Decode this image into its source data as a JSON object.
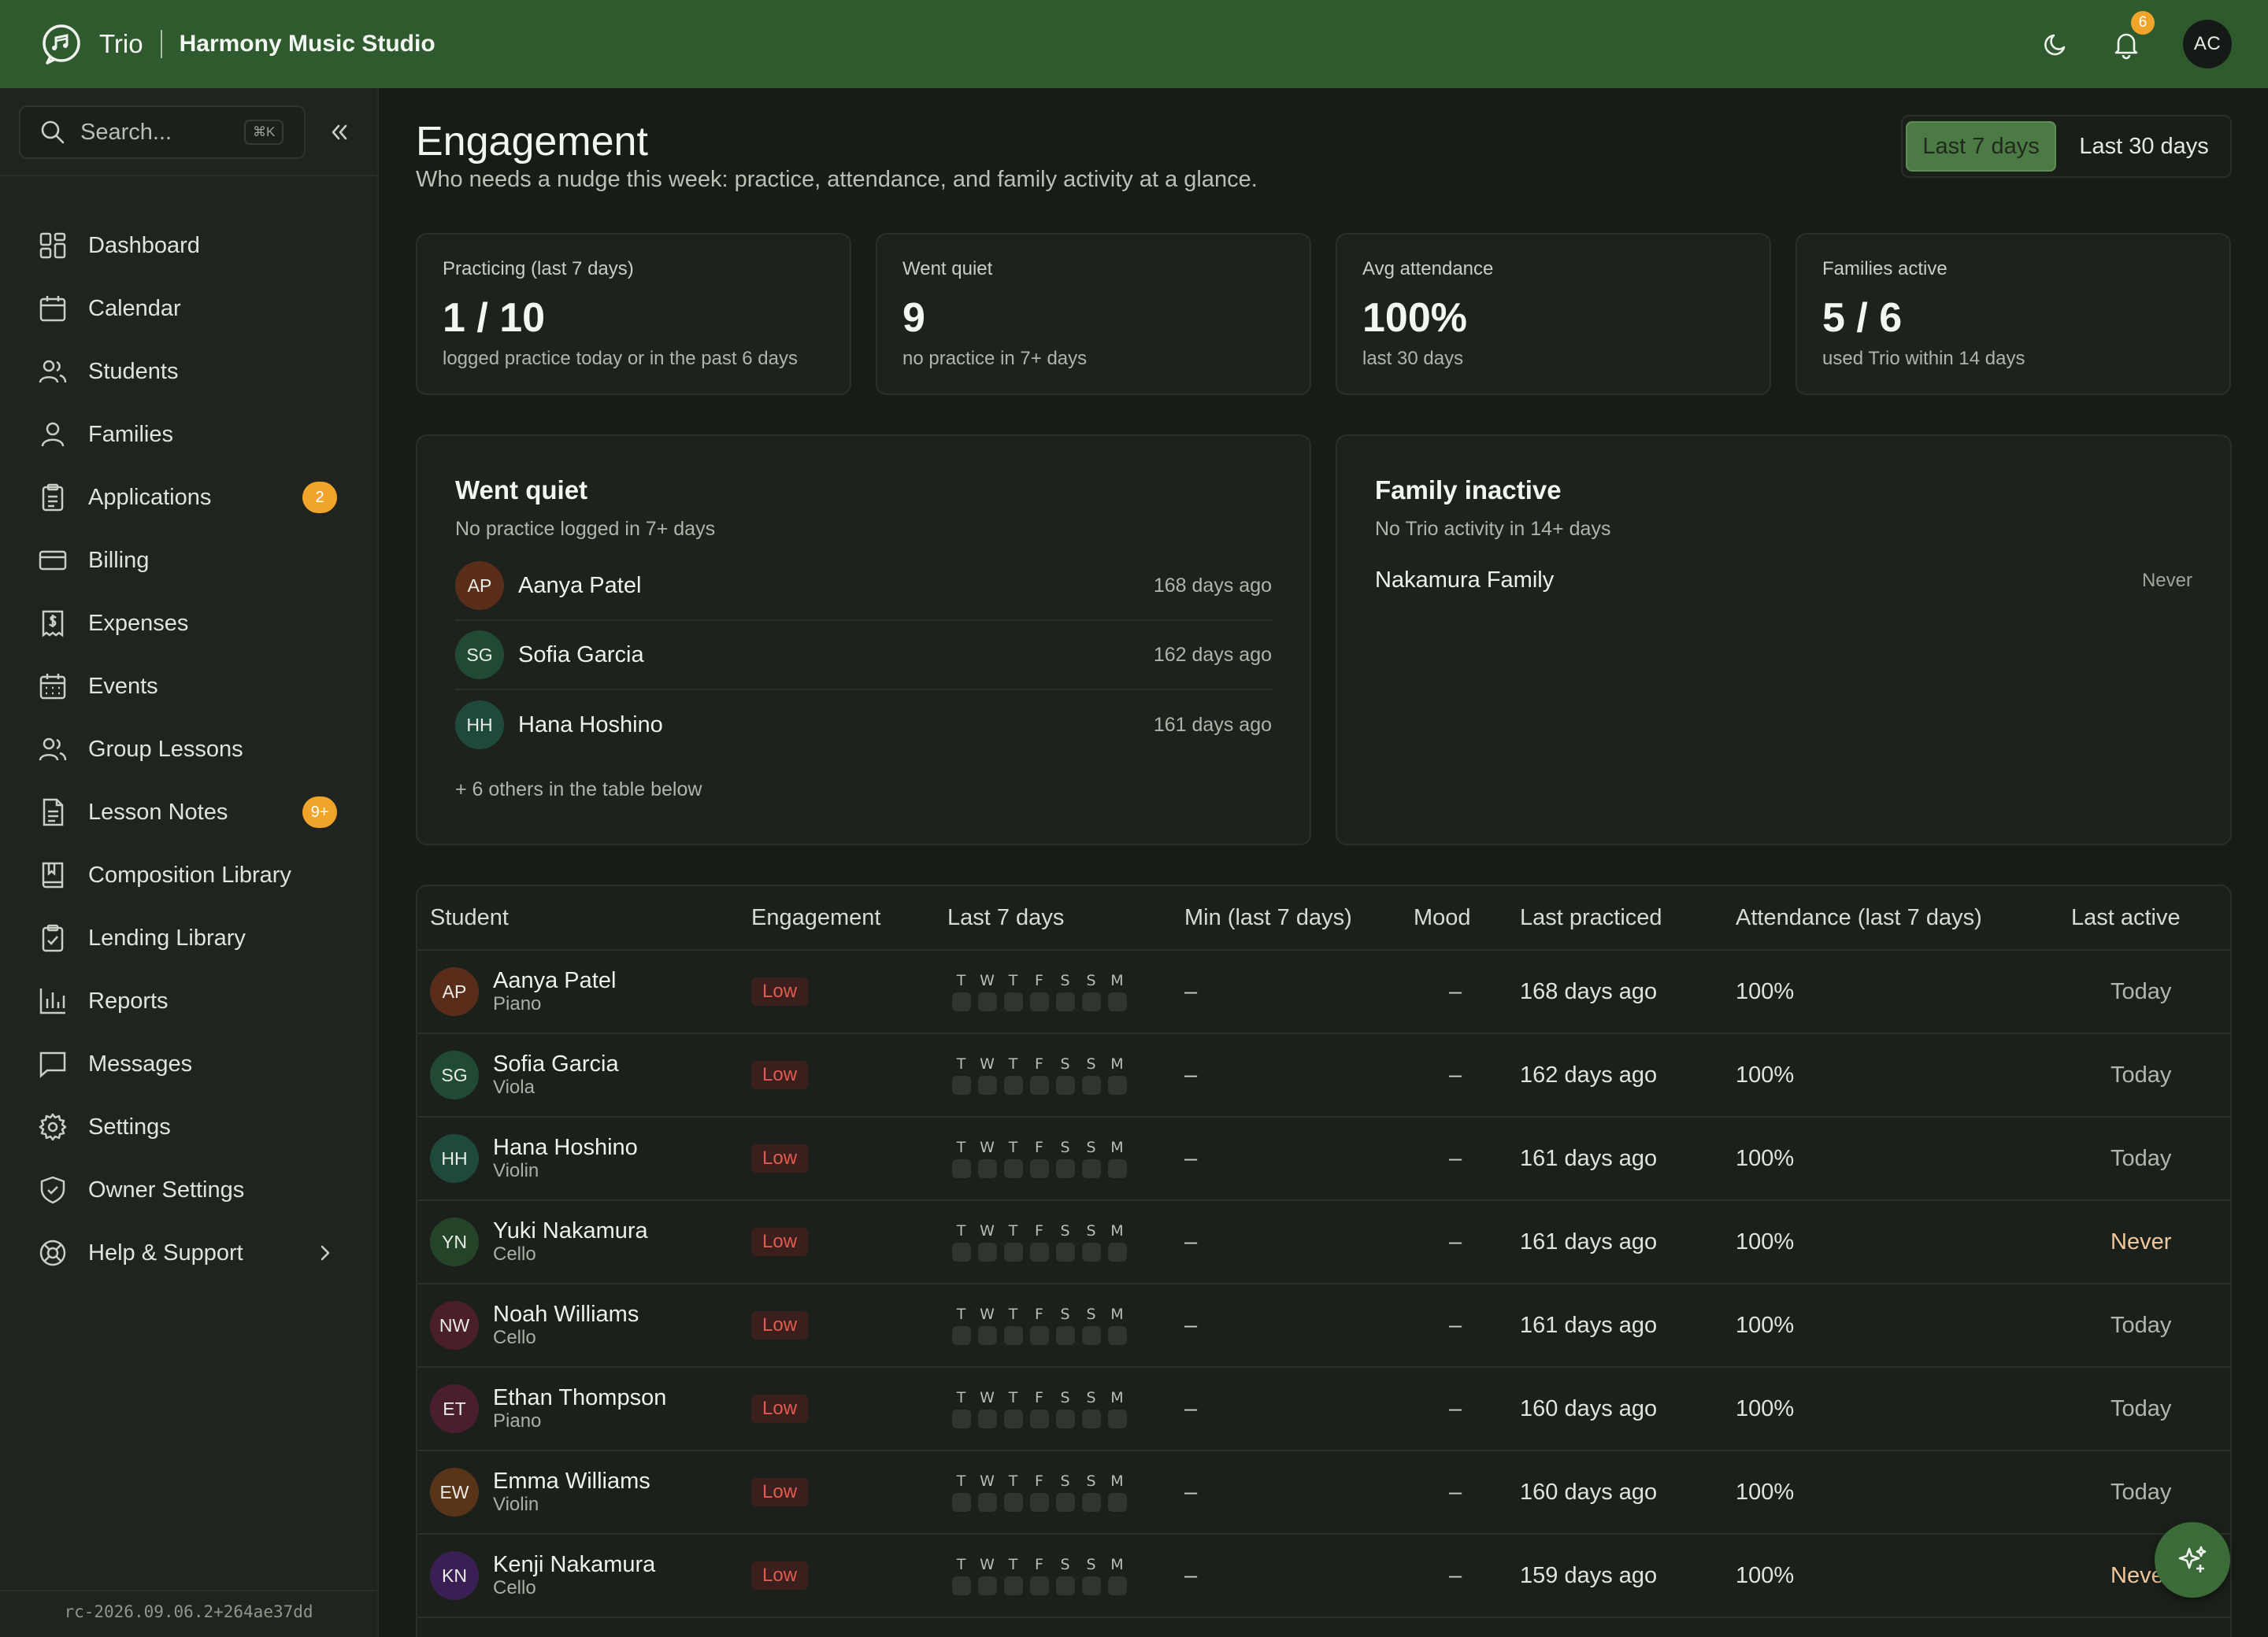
{
  "header": {
    "app_name": "Trio",
    "studio_name": "Harmony Music Studio",
    "notifications_count": "6",
    "user_initials": "AC"
  },
  "sidebar": {
    "search_placeholder": "Search...",
    "search_shortcut": "⌘K",
    "items": [
      {
        "label": "Dashboard",
        "icon": "dashboard-icon"
      },
      {
        "label": "Calendar",
        "icon": "calendar-icon"
      },
      {
        "label": "Students",
        "icon": "students-icon"
      },
      {
        "label": "Families",
        "icon": "families-icon"
      },
      {
        "label": "Applications",
        "icon": "clipboard-icon",
        "badge": "2"
      },
      {
        "label": "Billing",
        "icon": "credit-card-icon"
      },
      {
        "label": "Expenses",
        "icon": "receipt-icon"
      },
      {
        "label": "Events",
        "icon": "events-calendar-icon"
      },
      {
        "label": "Group Lessons",
        "icon": "group-icon"
      },
      {
        "label": "Lesson Notes",
        "icon": "notes-icon",
        "badge": "9+"
      },
      {
        "label": "Composition Library",
        "icon": "book-icon"
      },
      {
        "label": "Lending Library",
        "icon": "lending-icon"
      },
      {
        "label": "Reports",
        "icon": "bar-chart-icon"
      },
      {
        "label": "Messages",
        "icon": "message-icon"
      },
      {
        "label": "Settings",
        "icon": "gear-icon"
      },
      {
        "label": "Owner Settings",
        "icon": "shield-icon"
      },
      {
        "label": "Help & Support",
        "icon": "lifebuoy-icon"
      }
    ],
    "version": "rc-2026.09.06.2+264ae37dd"
  },
  "page": {
    "title": "Engagement",
    "subtitle": "Who needs a nudge this week: practice, attendance, and family activity at a glance.",
    "range_options": [
      "Last 7 days",
      "Last 30 days"
    ],
    "range_selected": "Last 7 days"
  },
  "stats": [
    {
      "label": "Practicing (last 7 days)",
      "value": "1 / 10",
      "foot": "logged practice today or in the past 6 days"
    },
    {
      "label": "Went quiet",
      "value": "9",
      "foot": "no practice in 7+ days"
    },
    {
      "label": "Avg attendance",
      "value": "100%",
      "foot": "last 30 days"
    },
    {
      "label": "Families active",
      "value": "5 / 6",
      "foot": "used Trio within 14 days"
    }
  ],
  "went_quiet": {
    "title": "Went quiet",
    "subtitle": "No practice logged in 7+ days",
    "rows": [
      {
        "initials": "AP",
        "name": "Aanya Patel",
        "ago": "168 days ago"
      },
      {
        "initials": "SG",
        "name": "Sofia Garcia",
        "ago": "162 days ago"
      },
      {
        "initials": "HH",
        "name": "Hana Hoshino",
        "ago": "161 days ago"
      }
    ],
    "more": "+ 6 others in the table below"
  },
  "family_inactive": {
    "title": "Family inactive",
    "subtitle": "No Trio activity in 14+ days",
    "rows": [
      {
        "name": "Nakamura Family",
        "value": "Never"
      }
    ]
  },
  "table": {
    "columns": [
      "Student",
      "Engagement",
      "Last 7 days",
      "Min (last 7 days)",
      "Mood",
      "Last practiced",
      "Attendance (last 7 days)",
      "Last active"
    ],
    "week_letters": [
      "T",
      "W",
      "T",
      "F",
      "S",
      "S",
      "M"
    ],
    "rows": [
      {
        "initials": "AP",
        "name": "Aanya Patel",
        "instrument": "Piano",
        "engagement": "Low",
        "minutes": "–",
        "mood": "–",
        "last_practiced": "168 days ago",
        "attendance": "100%",
        "last_active": "Today"
      },
      {
        "initials": "SG",
        "name": "Sofia Garcia",
        "instrument": "Viola",
        "engagement": "Low",
        "minutes": "–",
        "mood": "–",
        "last_practiced": "162 days ago",
        "attendance": "100%",
        "last_active": "Today"
      },
      {
        "initials": "HH",
        "name": "Hana Hoshino",
        "instrument": "Violin",
        "engagement": "Low",
        "minutes": "–",
        "mood": "–",
        "last_practiced": "161 days ago",
        "attendance": "100%",
        "last_active": "Today"
      },
      {
        "initials": "YN",
        "name": "Yuki Nakamura",
        "instrument": "Cello",
        "engagement": "Low",
        "minutes": "–",
        "mood": "–",
        "last_practiced": "161 days ago",
        "attendance": "100%",
        "last_active": "Never"
      },
      {
        "initials": "NW",
        "name": "Noah Williams",
        "instrument": "Cello",
        "engagement": "Low",
        "minutes": "–",
        "mood": "–",
        "last_practiced": "161 days ago",
        "attendance": "100%",
        "last_active": "Today"
      },
      {
        "initials": "ET",
        "name": "Ethan Thompson",
        "instrument": "Piano",
        "engagement": "Low",
        "minutes": "–",
        "mood": "–",
        "last_practiced": "160 days ago",
        "attendance": "100%",
        "last_active": "Today"
      },
      {
        "initials": "EW",
        "name": "Emma Williams",
        "instrument": "Violin",
        "engagement": "Low",
        "minutes": "–",
        "mood": "–",
        "last_practiced": "160 days ago",
        "attendance": "100%",
        "last_active": "Today"
      },
      {
        "initials": "KN",
        "name": "Kenji Nakamura",
        "instrument": "Cello",
        "engagement": "Low",
        "minutes": "–",
        "mood": "–",
        "last_practiced": "159 days ago",
        "attendance": "100%",
        "last_active": "Never"
      }
    ]
  },
  "colors": {
    "header": "#2f5a2e",
    "background": "#181c17",
    "badge": "#f0a52a",
    "low": "#e05c52",
    "never": "#f0c89c",
    "avatar_ap": "#5a2d1a",
    "avatar_sg": "#214a35",
    "avatar_hh": "#1f4a3b",
    "avatar_yn": "#24442a",
    "avatar_nw": "#4b1f28",
    "avatar_et": "#4a1e2e",
    "avatar_ew": "#5a3418",
    "avatar_kn": "#3a1f55"
  }
}
